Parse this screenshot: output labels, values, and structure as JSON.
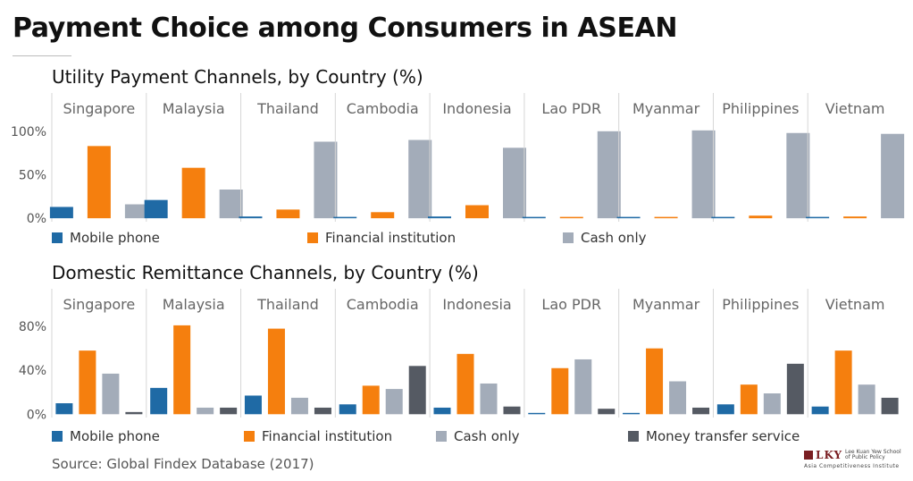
{
  "title": "Payment Choice among Consumers in ASEAN",
  "colors": {
    "mobile_phone": "#1f6aa5",
    "financial_institution": "#f57f0e",
    "cash_only": "#a3acb9",
    "money_transfer_service": "#555a63"
  },
  "chart_data": [
    {
      "type": "bar",
      "title": "Utility Payment Channels, by Country (%)",
      "categories": [
        "Singapore",
        "Malaysia",
        "Thailand",
        "Cambodia",
        "Indonesia",
        "Lao PDR",
        "Myanmar",
        "Philippines",
        "Vietnam"
      ],
      "ylim": [
        -4,
        107
      ],
      "yticks": [
        0,
        50,
        100
      ],
      "ytick_labels": [
        "0%",
        "50%",
        "100%"
      ],
      "series": [
        {
          "name": "Mobile phone",
          "color_key": "mobile_phone",
          "values": [
            13,
            21,
            2,
            0.5,
            2,
            0.3,
            0.3,
            0.3,
            0.8
          ]
        },
        {
          "name": "Financial institution",
          "color_key": "financial_institution",
          "values": [
            83,
            58,
            10,
            7,
            15,
            0.3,
            0.8,
            3,
            2
          ]
        },
        {
          "name": "Cash only",
          "color_key": "cash_only",
          "values": [
            16,
            33,
            88,
            90,
            81,
            100,
            101,
            98,
            97
          ]
        }
      ]
    },
    {
      "type": "bar",
      "title": "Domestic Remittance Channels, by Country (%)",
      "categories": [
        "Singapore",
        "Malaysia",
        "Thailand",
        "Cambodia",
        "Indonesia",
        "Lao PDR",
        "Myanmar",
        "Philippines",
        "Vietnam"
      ],
      "ylim": [
        -3,
        85
      ],
      "yticks": [
        0,
        40,
        80
      ],
      "ytick_labels": [
        "0%",
        "40%",
        "80%"
      ],
      "series": [
        {
          "name": "Mobile phone",
          "color_key": "mobile_phone",
          "values": [
            10,
            24,
            17,
            9,
            6,
            1,
            1,
            9,
            7
          ]
        },
        {
          "name": "Financial institution",
          "color_key": "financial_institution",
          "values": [
            58,
            81,
            78,
            26,
            55,
            42,
            60,
            27,
            58
          ]
        },
        {
          "name": "Cash only",
          "color_key": "cash_only",
          "values": [
            37,
            6,
            15,
            23,
            28,
            50,
            30,
            19,
            27
          ]
        },
        {
          "name": "Money transfer service",
          "color_key": "money_transfer_service",
          "values": [
            2,
            6,
            6,
            44,
            7,
            5,
            6,
            46,
            15
          ]
        }
      ]
    }
  ],
  "source": "Source: Global Findex Database (2017)",
  "logo": {
    "mark": "LKY",
    "school_name": "Lee Kuan Yew School of Public Policy",
    "institute": "Asia Competitiveness Institute"
  }
}
